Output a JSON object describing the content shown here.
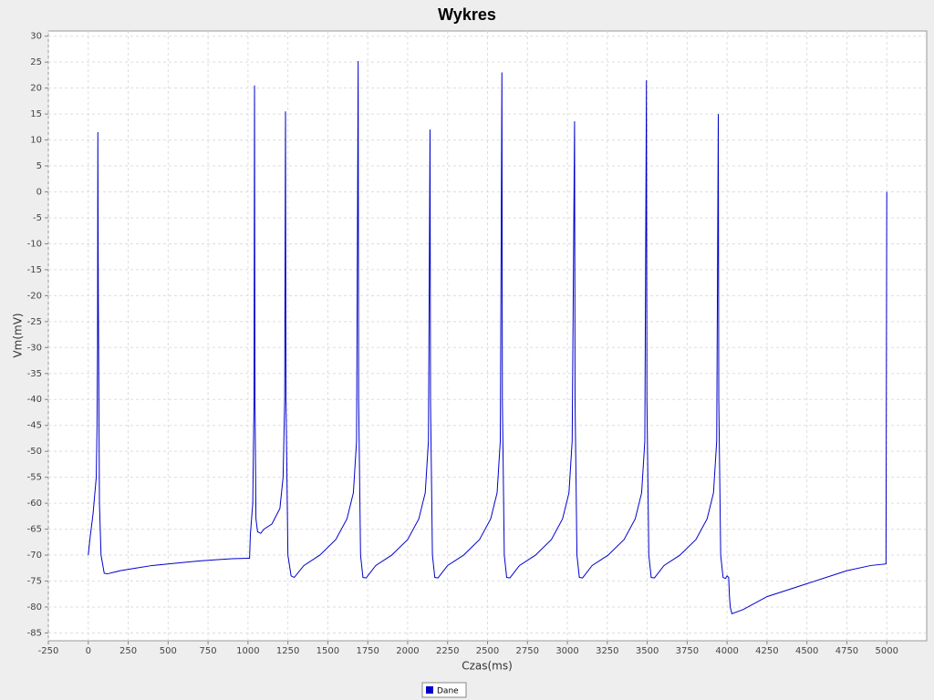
{
  "chart_data": {
    "type": "line",
    "title": "Wykres",
    "x_label": "Czas(ms)",
    "y_label": "Vm(mV)",
    "x": [
      0,
      10,
      30,
      50,
      55,
      58,
      60,
      63,
      70,
      80,
      100,
      120,
      200,
      300,
      400,
      500,
      600,
      700,
      800,
      900,
      1000,
      1010,
      1015,
      1030,
      1038,
      1041,
      1044,
      1050,
      1060,
      1080,
      1100,
      1150,
      1200,
      1220,
      1230,
      1235,
      1238,
      1250,
      1270,
      1290,
      1350,
      1450,
      1550,
      1620,
      1660,
      1680,
      1690,
      1693,
      1705,
      1720,
      1740,
      1800,
      1900,
      2000,
      2070,
      2110,
      2130,
      2140,
      2143,
      2155,
      2170,
      2190,
      2250,
      2350,
      2450,
      2520,
      2560,
      2580,
      2590,
      2593,
      2605,
      2620,
      2640,
      2700,
      2800,
      2900,
      2970,
      3010,
      3030,
      3045,
      3048,
      3060,
      3075,
      3095,
      3155,
      3255,
      3355,
      3425,
      3465,
      3485,
      3495,
      3498,
      3510,
      3525,
      3545,
      3605,
      3705,
      3805,
      3875,
      3915,
      3935,
      3945,
      3948,
      3960,
      3975,
      3990,
      4000,
      4010,
      4015,
      4020,
      4030,
      4100,
      4250,
      4500,
      4750,
      4900,
      4995,
      5000
    ],
    "series": [
      {
        "name": "Dane",
        "color": "#0000cc",
        "values": [
          -70,
          -67,
          -62,
          -55,
          -45,
          -30,
          11.5,
          -20,
          -60,
          -70,
          -73.5,
          -73.6,
          -73,
          -72.5,
          -72,
          -71.7,
          -71.4,
          -71.1,
          -70.9,
          -70.7,
          -70.6,
          -70.6,
          -66,
          -60,
          -40,
          20.5,
          -40,
          -63,
          -65.5,
          -65.8,
          -65,
          -64,
          -61,
          -55,
          -40,
          15.5,
          -40,
          -70,
          -74,
          -74.3,
          -72,
          -70,
          -67,
          -63,
          -58,
          -48,
          25.2,
          -40,
          -70,
          -74.3,
          -74.4,
          -72,
          -70,
          -67,
          -63,
          -58,
          -48,
          12,
          -40,
          -70,
          -74.3,
          -74.4,
          -72,
          -70,
          -67,
          -63,
          -58,
          -48,
          23,
          -40,
          -70,
          -74.3,
          -74.4,
          -72,
          -70,
          -67,
          -63,
          -58,
          -48,
          13.6,
          -40,
          -70,
          -74.3,
          -74.4,
          -72,
          -70,
          -67,
          -63,
          -58,
          -48,
          21.5,
          -40,
          -70,
          -74.3,
          -74.4,
          -72,
          -70,
          -67,
          -63,
          -58,
          -48,
          15,
          -40,
          -70,
          -74.3,
          -74.5,
          -74,
          -74.3,
          -78,
          -80,
          -81.3,
          -80.5,
          -78,
          -75.5,
          -73,
          -72,
          -71.7,
          0
        ]
      }
    ],
    "xlim": [
      -250,
      5250
    ],
    "ylim": [
      -86.5,
      31
    ],
    "xticks": [
      -250,
      0,
      250,
      500,
      750,
      1000,
      1250,
      1500,
      1750,
      2000,
      2250,
      2500,
      2750,
      3000,
      3250,
      3500,
      3750,
      4000,
      4250,
      4500,
      4750,
      5000
    ],
    "yticks": [
      -85,
      -80,
      -75,
      -70,
      -65,
      -60,
      -55,
      -50,
      -45,
      -40,
      -35,
      -30,
      -25,
      -20,
      -15,
      -10,
      -5,
      0,
      5,
      10,
      15,
      20,
      25,
      30
    ],
    "grid": true,
    "legend": "bottom"
  }
}
